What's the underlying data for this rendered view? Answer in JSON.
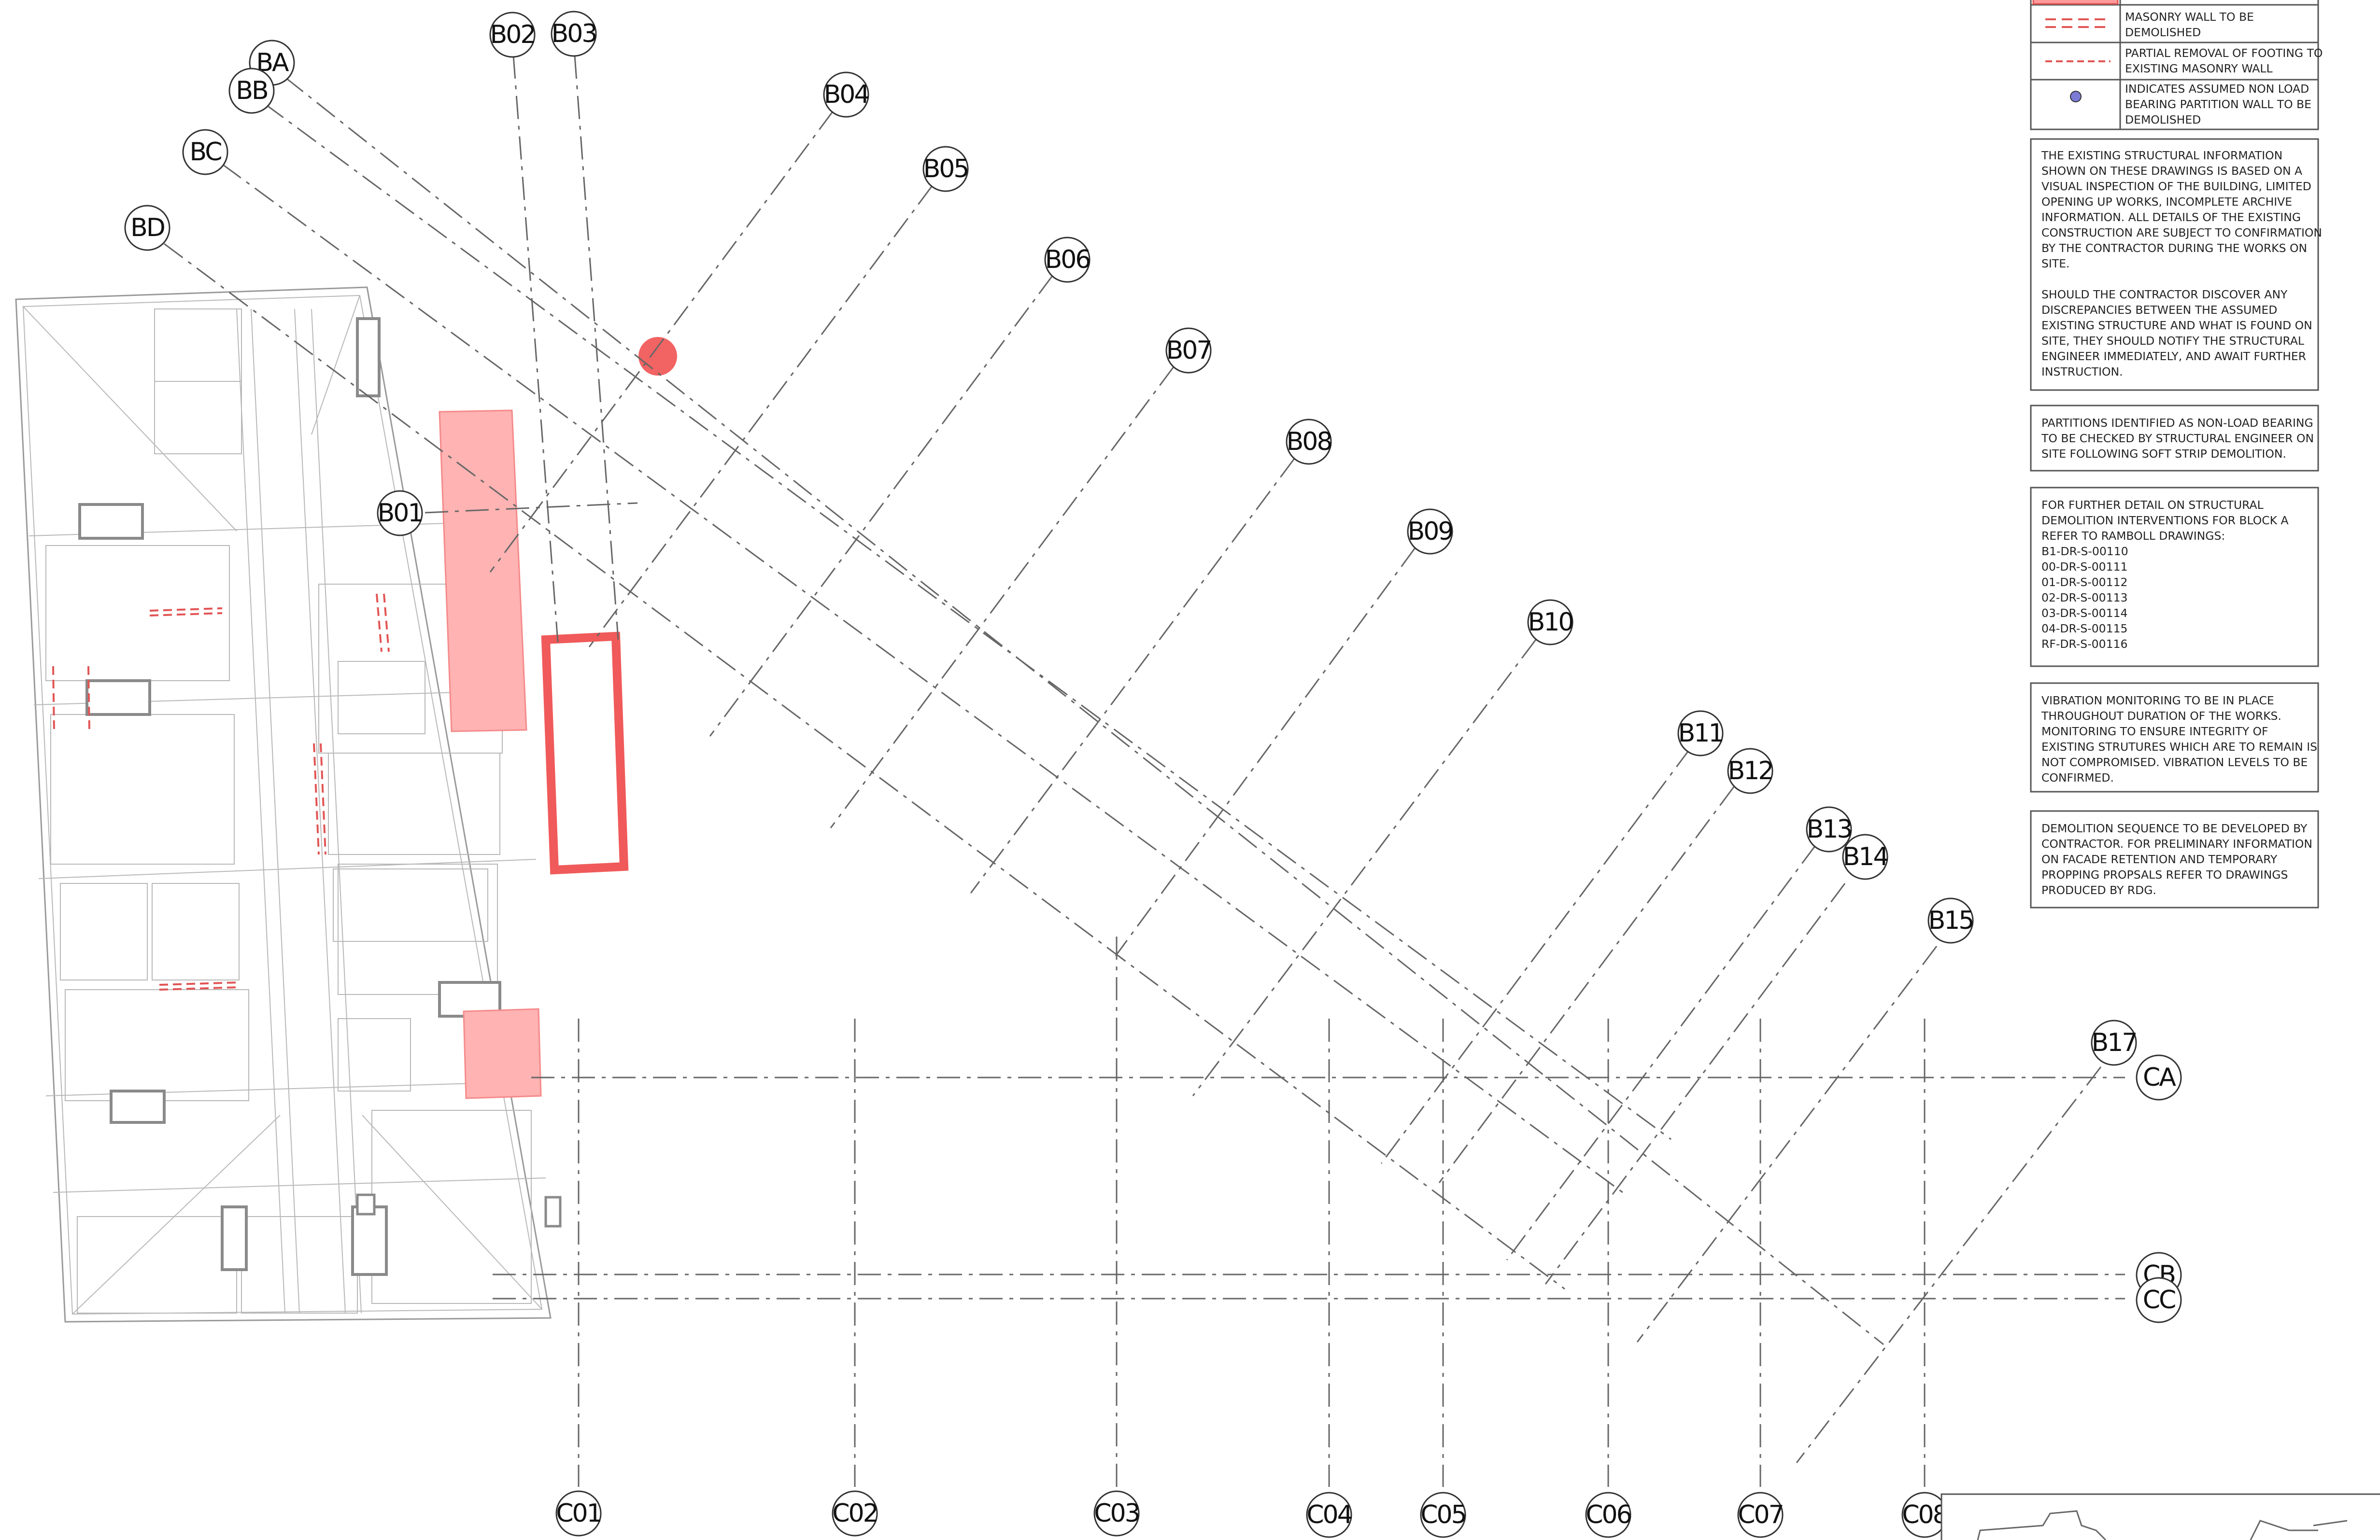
{
  "legend": {
    "items": [
      {
        "label_lines": [
          "MASONRY WALL TO BE",
          "DEMOLISHED"
        ],
        "symbol": "double-red-dashed-line"
      },
      {
        "label_lines": [
          "PARTIAL REMOVAL OF FOOTING TO",
          "EXISTING MASONRY WALL"
        ],
        "symbol": "red-dashed-line"
      },
      {
        "label_lines": [
          "INDICATES ASSUMED NON LOAD",
          "BEARING PARTITION WALL TO BE",
          "DEMOLISHED"
        ],
        "symbol": "blue-dot"
      }
    ]
  },
  "notes": [
    {
      "lines": [
        "THE EXISTING STRUCTURAL INFORMATION",
        "SHOWN ON THESE DRAWINGS IS BASED ON A",
        "VISUAL INSPECTION OF THE BUILDING, LIMITED",
        "OPENING UP WORKS, INCOMPLETE ARCHIVE",
        "INFORMATION. ALL DETAILS OF THE EXISTING",
        "CONSTRUCTION ARE SUBJECT TO CONFIRMATION",
        "BY THE CONTRACTOR DURING THE WORKS ON",
        "SITE.",
        "",
        "SHOULD THE CONTRACTOR DISCOVER ANY",
        "DISCREPANCIES BETWEEN THE ASSUMED",
        "EXISTING STRUCTURE AND WHAT IS FOUND ON",
        "SITE, THEY SHOULD NOTIFY THE STRUCTURAL",
        "ENGINEER IMMEDIATELY, AND AWAIT FURTHER",
        "INSTRUCTION."
      ]
    },
    {
      "lines": [
        "PARTITIONS IDENTIFIED AS NON-LOAD BEARING",
        "TO BE CHECKED BY STRUCTURAL ENGINEER ON",
        "SITE FOLLOWING SOFT STRIP DEMOLITION."
      ]
    },
    {
      "lines": [
        "FOR FURTHER DETAIL ON STRUCTURAL",
        "DEMOLITION INTERVENTIONS FOR BLOCK A",
        "REFER TO RAMBOLL DRAWINGS:",
        "B1-DR-S-00110",
        "00-DR-S-00111",
        "01-DR-S-00112",
        "02-DR-S-00113",
        "03-DR-S-00114",
        "04-DR-S-00115",
        "RF-DR-S-00116"
      ]
    },
    {
      "lines": [
        "VIBRATION MONITORING TO BE IN PLACE",
        "THROUGHOUT DURATION OF THE WORKS.",
        "MONITORING TO ENSURE INTEGRITY OF",
        "EXISTING STRUTURES WHICH ARE TO REMAIN IS",
        "NOT COMPROMISED. VIBRATION LEVELS TO BE",
        "CONFIRMED."
      ]
    },
    {
      "lines": [
        "DEMOLITION SEQUENCE TO BE DEVELOPED BY",
        "CONTRACTOR. FOR PRELIMINARY INFORMATION",
        "ON FACADE RETENTION AND TEMPORARY",
        "PROPPING PROPSALS REFER TO DRAWINGS",
        "PRODUCED BY RDG."
      ]
    }
  ],
  "grid_labels": {
    "b_axes": [
      "BA",
      "BB",
      "BC",
      "BD"
    ],
    "b_lines": [
      "B01",
      "B02",
      "B03",
      "B04",
      "B05",
      "B06",
      "B07",
      "B08",
      "B09",
      "B10",
      "B11",
      "B12",
      "B13",
      "B14",
      "B15",
      "B17"
    ],
    "c_lines": [
      "C01",
      "C02",
      "C03",
      "C04",
      "C05",
      "C06",
      "C07",
      "C08"
    ],
    "c_axes": [
      "CA",
      "CB",
      "CC"
    ]
  },
  "colors": {
    "demolish_fill": "#ffb3b3",
    "demolish_stroke": "#f05a5a",
    "marker": "#f26363",
    "legend_dot": "#7b7bd6",
    "grid_line": "#666666"
  }
}
